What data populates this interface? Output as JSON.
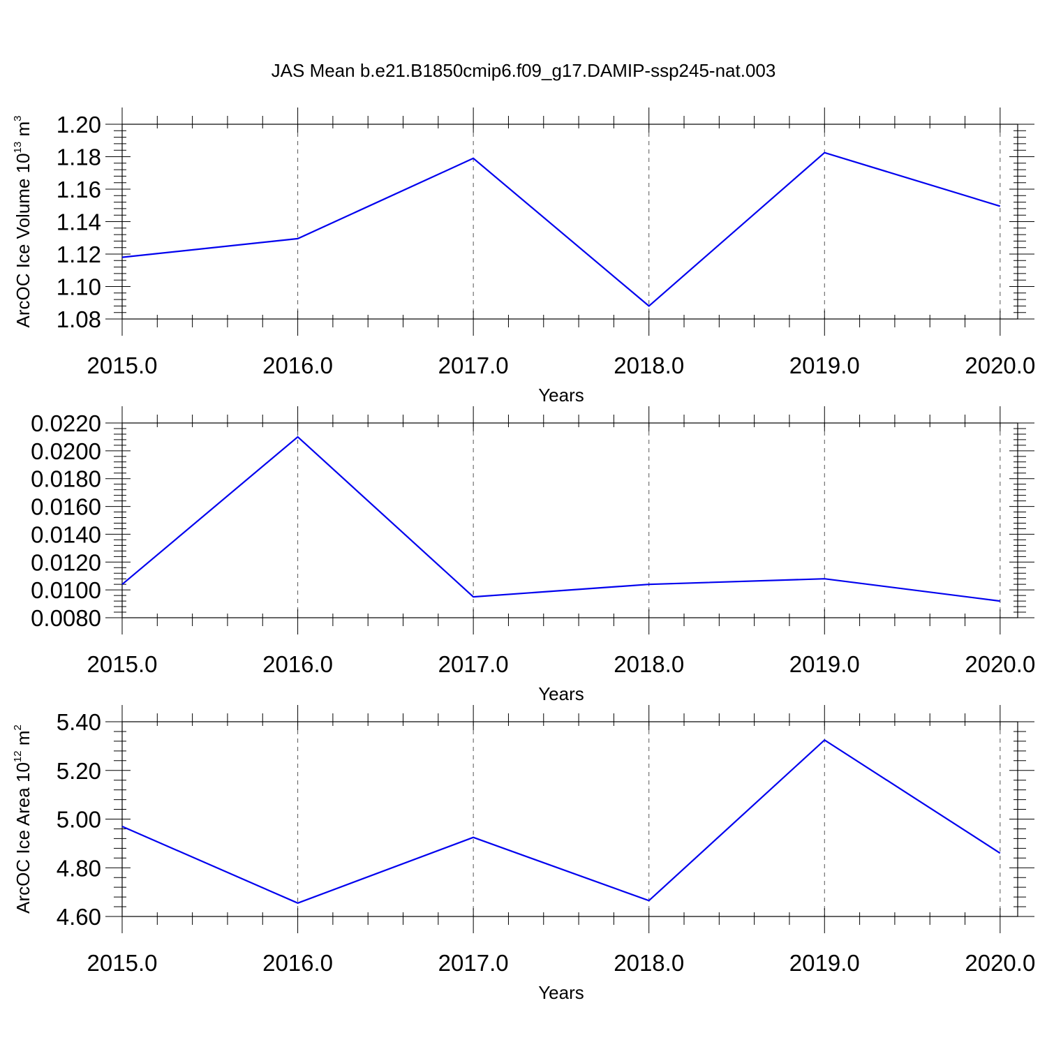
{
  "figure": {
    "title": "JAS Mean b.e21.B1850cmip6.f09_g17.DAMIP-ssp245-nat.003"
  },
  "chart_data": [
    {
      "type": "line",
      "ylabel": {
        "base": "ArcOC Ice Volume 10",
        "exp1": "13",
        "mid": " m",
        "exp2": "3"
      },
      "xlabel": "Years",
      "x": [
        2015,
        2016,
        2017,
        2018,
        2019,
        2020
      ],
      "y": [
        1.118,
        1.1295,
        1.179,
        1.088,
        1.1825,
        1.1495
      ],
      "xlim": [
        2015,
        2020.1
      ],
      "ylim": [
        1.08,
        1.2
      ],
      "xticks": [
        2015,
        2016,
        2017,
        2018,
        2019,
        2020
      ],
      "xtick_labels": [
        "2015.0",
        "2016.0",
        "2017.0",
        "2018.0",
        "2019.0",
        "2020.0"
      ],
      "yticks": [
        1.08,
        1.1,
        1.12,
        1.14,
        1.16,
        1.18,
        1.2
      ],
      "ytick_labels": [
        "1.08",
        "1.10",
        "1.12",
        "1.14",
        "1.16",
        "1.18",
        "1.20"
      ],
      "line_color": "#0000ee",
      "grid": "vertical dashed at major x ticks"
    },
    {
      "type": "line",
      "ylabel": {
        "base": "",
        "exp1": "",
        "mid": "",
        "exp2": ""
      },
      "xlabel": "Years",
      "x": [
        2015,
        2016,
        2017,
        2018,
        2019,
        2020
      ],
      "y": [
        0.0104,
        0.021,
        0.0095,
        0.0104,
        0.0108,
        0.0092
      ],
      "xlim": [
        2015,
        2020.1
      ],
      "ylim": [
        0.008,
        0.022
      ],
      "xticks": [
        2015,
        2016,
        2017,
        2018,
        2019,
        2020
      ],
      "xtick_labels": [
        "2015.0",
        "2016.0",
        "2017.0",
        "2018.0",
        "2019.0",
        "2020.0"
      ],
      "yticks": [
        0.008,
        0.01,
        0.012,
        0.014,
        0.016,
        0.018,
        0.02,
        0.022
      ],
      "ytick_labels": [
        "0.0080",
        "0.0100",
        "0.0120",
        "0.0140",
        "0.0160",
        "0.0180",
        "0.0200",
        "0.0220"
      ],
      "line_color": "#0000ee",
      "grid": "vertical dashed at major x ticks"
    },
    {
      "type": "line",
      "ylabel": {
        "base": "ArcOC Ice Area 10",
        "exp1": "12",
        "mid": " m",
        "exp2": "2"
      },
      "xlabel": "Years",
      "x": [
        2015,
        2016,
        2017,
        2018,
        2019,
        2020
      ],
      "y": [
        4.97,
        4.655,
        4.925,
        4.665,
        5.325,
        4.86
      ],
      "xlim": [
        2015,
        2020.1
      ],
      "ylim": [
        4.6,
        5.4
      ],
      "xticks": [
        2015,
        2016,
        2017,
        2018,
        2019,
        2020
      ],
      "xtick_labels": [
        "2015.0",
        "2016.0",
        "2017.0",
        "2018.0",
        "2019.0",
        "2020.0"
      ],
      "yticks": [
        4.6,
        4.8,
        5.0,
        5.2,
        5.4
      ],
      "ytick_labels": [
        "4.60",
        "4.80",
        "5.00",
        "5.20",
        "5.40"
      ],
      "line_color": "#0000ee",
      "grid": "vertical dashed at major x ticks"
    }
  ]
}
